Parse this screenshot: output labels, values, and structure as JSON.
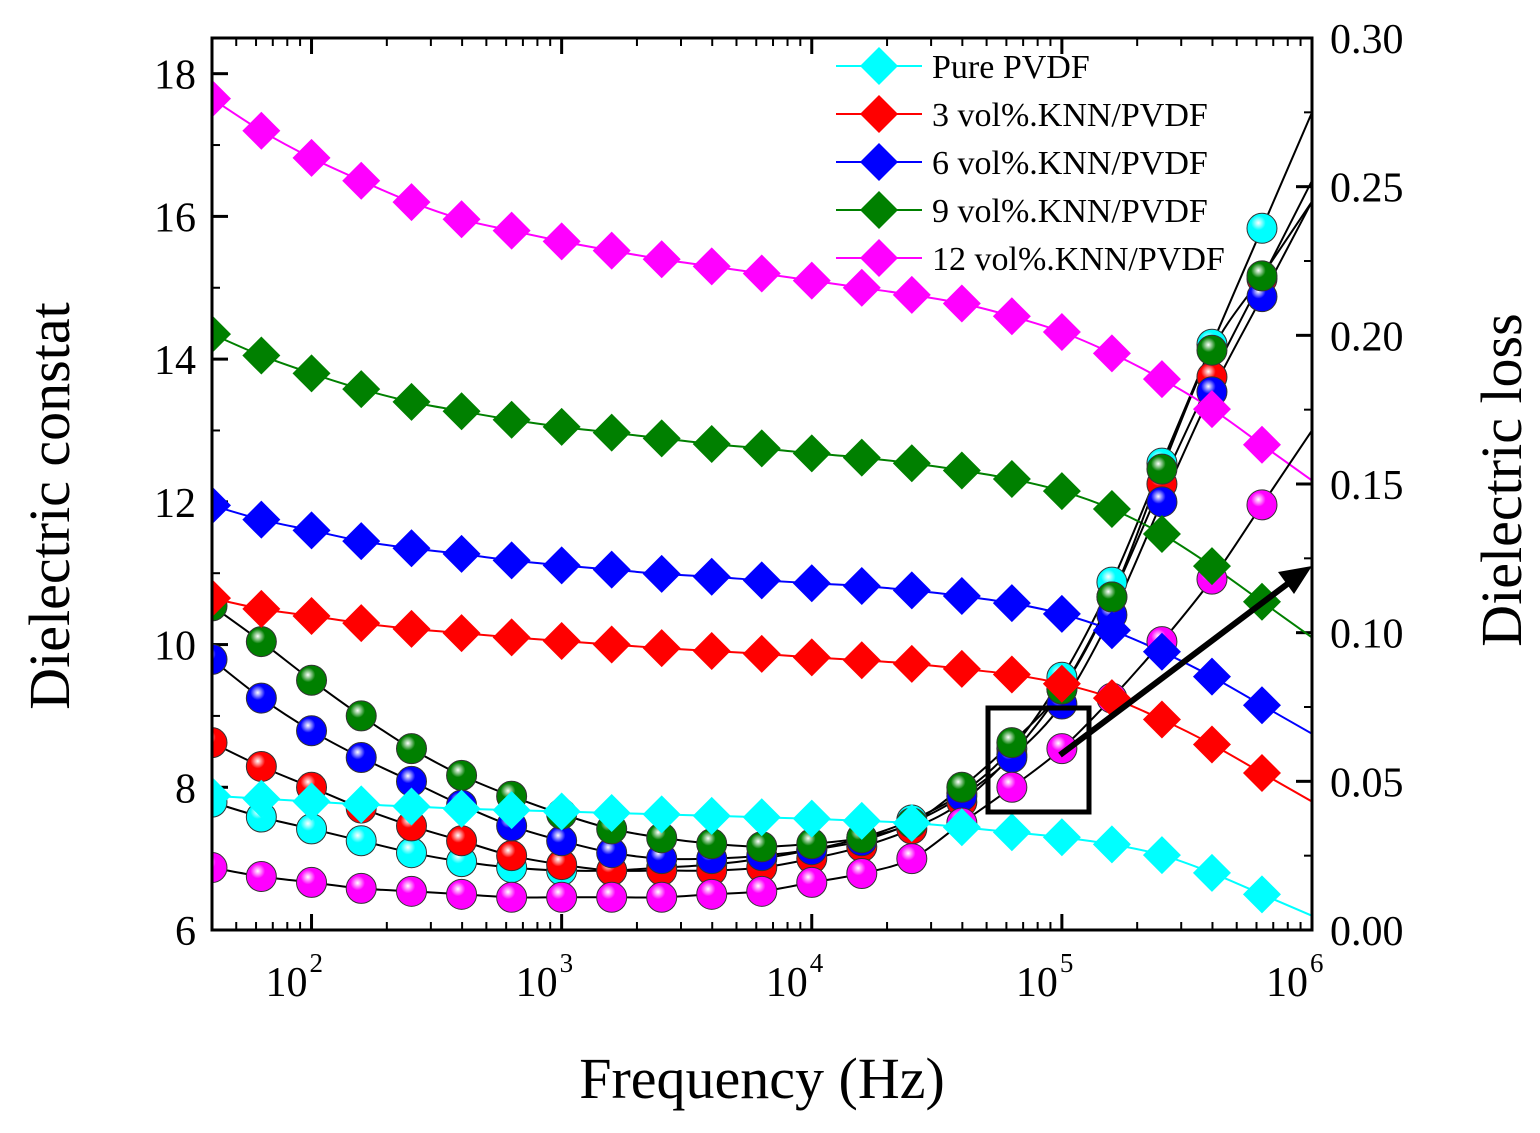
{
  "chart_data": {
    "type": "line",
    "xlabel": "Frequency (Hz)",
    "ylabel_left": "Dielectric constat",
    "ylabel_right": "Dielectric loss",
    "x_scale": "log",
    "xlim": [
      40,
      1000000
    ],
    "ylim_left": [
      6,
      18.5
    ],
    "ylim_right": [
      0.0,
      0.3
    ],
    "x_ticks": [
      {
        "base": "10",
        "exp": "2",
        "value": 100
      },
      {
        "base": "10",
        "exp": "3",
        "value": 1000
      },
      {
        "base": "10",
        "exp": "4",
        "value": 10000
      },
      {
        "base": "10",
        "exp": "5",
        "value": 100000
      },
      {
        "base": "10",
        "exp": "6",
        "value": 1000000
      }
    ],
    "y_left_ticks": [
      "6",
      "8",
      "10",
      "12",
      "14",
      "16",
      "18"
    ],
    "y_right_ticks": [
      "0.00",
      "0.05",
      "0.10",
      "0.15",
      "0.20",
      "0.25",
      "0.30"
    ],
    "legend_position": "top-right",
    "x": [
      40,
      63,
      100,
      158,
      251,
      398,
      631,
      1000,
      1585,
      2512,
      3981,
      6310,
      10000,
      15849,
      25119,
      39811,
      63096,
      100000,
      158489,
      251189,
      398107,
      630957
    ],
    "series": [
      {
        "name": "Pure PVDF",
        "color": "#00FFFF",
        "constant": [
          7.88,
          7.84,
          7.8,
          7.76,
          7.73,
          7.7,
          7.68,
          7.66,
          7.64,
          7.62,
          7.6,
          7.58,
          7.56,
          7.53,
          7.5,
          7.44,
          7.37,
          7.3,
          7.2,
          7.05,
          6.8,
          6.5
        ],
        "loss": [
          0.043,
          0.038,
          0.034,
          0.03,
          0.026,
          0.023,
          0.021,
          0.02,
          0.02,
          0.021,
          0.022,
          0.024,
          0.027,
          0.031,
          0.037,
          0.046,
          0.061,
          0.085,
          0.117,
          0.157,
          0.197,
          0.236
        ]
      },
      {
        "name": "3 vol%.KNN/PVDF",
        "color": "#FF0000",
        "constant": [
          10.65,
          10.5,
          10.4,
          10.3,
          10.22,
          10.16,
          10.1,
          10.05,
          10.0,
          9.95,
          9.91,
          9.87,
          9.82,
          9.78,
          9.73,
          9.66,
          9.58,
          9.45,
          9.25,
          8.95,
          8.6,
          8.2
        ],
        "loss": [
          0.063,
          0.055,
          0.048,
          0.041,
          0.035,
          0.03,
          0.025,
          0.022,
          0.02,
          0.02,
          0.02,
          0.021,
          0.024,
          0.028,
          0.034,
          0.043,
          0.059,
          0.081,
          0.112,
          0.15,
          0.186,
          0.219
        ]
      },
      {
        "name": "6 vol%.KNN/PVDF",
        "color": "#0000FF",
        "constant": [
          11.95,
          11.75,
          11.6,
          11.45,
          11.35,
          11.27,
          11.18,
          11.11,
          11.05,
          10.99,
          10.95,
          10.9,
          10.86,
          10.82,
          10.76,
          10.68,
          10.58,
          10.43,
          10.2,
          9.9,
          9.55,
          9.15
        ],
        "loss": [
          0.091,
          0.078,
          0.067,
          0.058,
          0.05,
          0.042,
          0.035,
          0.03,
          0.026,
          0.024,
          0.024,
          0.025,
          0.027,
          0.03,
          0.036,
          0.045,
          0.058,
          0.076,
          0.106,
          0.144,
          0.181,
          0.213
        ]
      },
      {
        "name": "9 vol%.KNN/PVDF",
        "color": "#008000",
        "constant": [
          14.35,
          14.05,
          13.8,
          13.58,
          13.4,
          13.27,
          13.15,
          13.05,
          12.97,
          12.89,
          12.81,
          12.75,
          12.68,
          12.62,
          12.54,
          12.44,
          12.32,
          12.15,
          11.9,
          11.55,
          11.1,
          10.6
        ],
        "loss": [
          0.109,
          0.097,
          0.084,
          0.072,
          0.061,
          0.052,
          0.045,
          0.039,
          0.034,
          0.031,
          0.029,
          0.028,
          0.029,
          0.031,
          0.036,
          0.048,
          0.063,
          0.081,
          0.112,
          0.155,
          0.195,
          0.22
        ]
      },
      {
        "name": "12 vol%.KNN/PVDF",
        "color": "#FF00FF",
        "constant": [
          17.65,
          17.2,
          16.82,
          16.5,
          16.2,
          15.96,
          15.8,
          15.65,
          15.52,
          15.4,
          15.3,
          15.2,
          15.1,
          15.0,
          14.9,
          14.78,
          14.6,
          14.38,
          14.08,
          13.72,
          13.3,
          12.8
        ],
        "loss": [
          0.021,
          0.018,
          0.016,
          0.014,
          0.013,
          0.012,
          0.011,
          0.011,
          0.011,
          0.011,
          0.012,
          0.013,
          0.016,
          0.019,
          0.024,
          0.036,
          0.048,
          0.061,
          0.078,
          0.097,
          0.118,
          0.143
        ]
      }
    ]
  }
}
